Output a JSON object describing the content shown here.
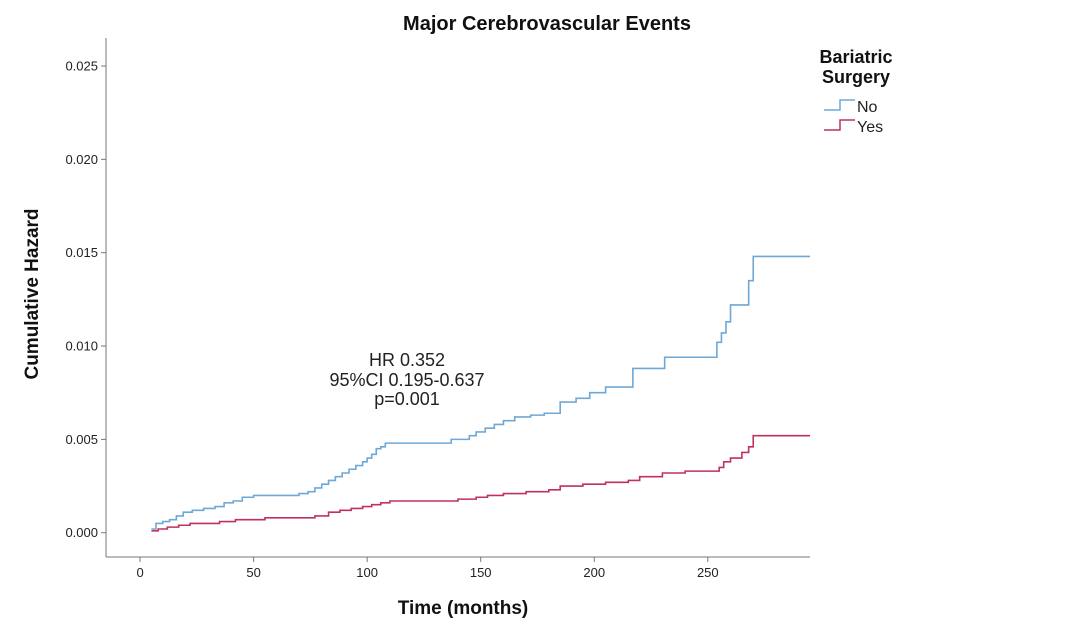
{
  "chart_data": {
    "type": "line",
    "title": "Major Cerebrovascular Events",
    "xlabel": "Time (months)",
    "ylabel": "Cumulative Hazard",
    "xlim": [
      -15,
      295
    ],
    "ylim": [
      -0.0013,
      0.0265
    ],
    "x_ticks": [
      0,
      50,
      100,
      150,
      200,
      250
    ],
    "y_ticks": [
      0.0,
      0.005,
      0.01,
      0.015,
      0.02,
      0.025
    ],
    "y_tick_labels": [
      "0.000",
      "0.005",
      "0.010",
      "0.015",
      "0.020",
      "0.025"
    ],
    "grid": false,
    "legend": {
      "title": "Bariatric Surgery",
      "title_lines": [
        "Bariatric",
        "Surgery"
      ],
      "placement": "top-right"
    },
    "annotation": [
      "HR 0.352",
      "95%CI 0.195-0.637",
      "p=0.001"
    ],
    "series": [
      {
        "name": "No",
        "color": "#6fa8d6",
        "x": [
          5,
          7,
          10,
          13,
          16,
          19,
          23,
          28,
          33,
          37,
          41,
          45,
          50,
          55,
          60,
          65,
          70,
          74,
          77,
          80,
          83,
          86,
          89,
          92,
          95,
          98,
          100,
          102,
          104,
          106,
          108,
          112,
          120,
          130,
          137,
          145,
          148,
          152,
          156,
          160,
          165,
          172,
          178,
          185,
          192,
          198,
          205,
          210,
          217,
          224,
          231,
          236,
          245,
          250,
          254,
          256,
          258,
          260,
          265,
          268,
          270,
          280,
          295
        ],
        "y": [
          0.0002,
          0.0005,
          0.0006,
          0.0007,
          0.0009,
          0.0011,
          0.0012,
          0.0013,
          0.0014,
          0.0016,
          0.0017,
          0.0019,
          0.002,
          0.002,
          0.002,
          0.002,
          0.0021,
          0.0022,
          0.0024,
          0.0026,
          0.0028,
          0.003,
          0.0032,
          0.0034,
          0.0036,
          0.0038,
          0.004,
          0.0042,
          0.0045,
          0.0046,
          0.0048,
          0.0048,
          0.0048,
          0.0048,
          0.005,
          0.0052,
          0.0054,
          0.0056,
          0.0058,
          0.006,
          0.0062,
          0.0063,
          0.0064,
          0.007,
          0.0072,
          0.0075,
          0.0078,
          0.0078,
          0.0088,
          0.0088,
          0.0094,
          0.0094,
          0.0094,
          0.0094,
          0.0102,
          0.0107,
          0.0113,
          0.0122,
          0.0122,
          0.0135,
          0.0148,
          0.0148,
          0.0148
        ]
      },
      {
        "name": "Yes",
        "color": "#c0325a",
        "x": [
          5,
          8,
          12,
          17,
          22,
          28,
          35,
          42,
          48,
          55,
          62,
          70,
          77,
          83,
          88,
          93,
          98,
          102,
          106,
          110,
          120,
          130,
          140,
          148,
          153,
          160,
          170,
          180,
          185,
          195,
          205,
          215,
          220,
          230,
          240,
          250,
          255,
          257,
          260,
          265,
          268,
          270,
          280,
          295
        ],
        "y": [
          0.0001,
          0.0002,
          0.0003,
          0.0004,
          0.0005,
          0.0005,
          0.0006,
          0.0007,
          0.0007,
          0.0008,
          0.0008,
          0.0008,
          0.0009,
          0.0011,
          0.0012,
          0.0013,
          0.0014,
          0.0015,
          0.0016,
          0.0017,
          0.0017,
          0.0017,
          0.0018,
          0.0019,
          0.002,
          0.0021,
          0.0022,
          0.0023,
          0.0025,
          0.0026,
          0.0027,
          0.0028,
          0.003,
          0.0032,
          0.0033,
          0.0033,
          0.0035,
          0.0038,
          0.004,
          0.0043,
          0.0046,
          0.0052,
          0.0052,
          0.0052
        ]
      }
    ]
  }
}
